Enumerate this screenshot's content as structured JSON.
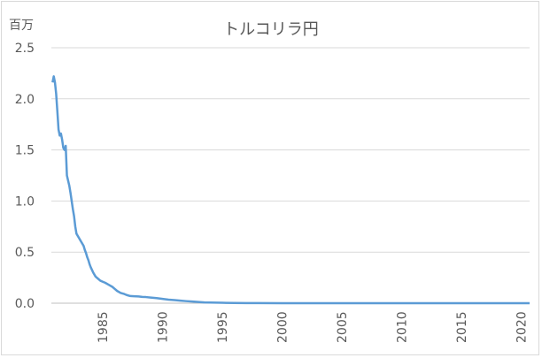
{
  "chart_data": {
    "type": "line",
    "title": "トルコリラ円",
    "unit_label": "百万",
    "xlabel": "",
    "ylabel": "",
    "ylim": [
      0,
      2.5
    ],
    "xlim": [
      1980.7,
      2020.7
    ],
    "y_ticks": [
      "0.0",
      "0.5",
      "1.0",
      "1.5",
      "2.0",
      "2.5"
    ],
    "x_ticks": [
      "1985",
      "1990",
      "1995",
      "2000",
      "2005",
      "2010",
      "2015",
      "2020"
    ],
    "grid": true,
    "legend": "none",
    "line_color": "#5b9bd5",
    "series": [
      {
        "x": [
          1980.8,
          1980.9,
          1981.0,
          1981.1,
          1981.2,
          1981.3,
          1981.4,
          1981.5,
          1981.6,
          1981.7,
          1981.8,
          1981.9,
          1982.0,
          1982.1,
          1982.2,
          1982.3,
          1982.4,
          1982.5,
          1982.6,
          1982.7,
          1982.8,
          1983.0,
          1983.2,
          1983.4,
          1983.5,
          1983.6,
          1983.7,
          1983.8,
          1983.9,
          1984.0,
          1984.2,
          1984.4,
          1984.6,
          1984.8,
          1985.0,
          1985.2,
          1985.5,
          1985.8,
          1986.0,
          1986.2,
          1986.5,
          1986.8,
          1987.0,
          1987.3,
          1987.6,
          1988.0,
          1988.3,
          1988.6,
          1989.0,
          1989.5,
          1990.0,
          1990.5,
          1991.0,
          1991.5,
          1992.0,
          1992.5,
          1993.0,
          1993.5,
          1994.0,
          1995.0,
          1996.0,
          1997.0,
          1998.0,
          2000.0,
          2005.0,
          2010.0,
          2015.0,
          2020.7
        ],
        "y": [
          2.16,
          2.22,
          2.16,
          2.05,
          1.88,
          1.7,
          1.64,
          1.66,
          1.6,
          1.52,
          1.5,
          1.54,
          1.25,
          1.2,
          1.15,
          1.08,
          1.0,
          0.92,
          0.85,
          0.75,
          0.68,
          0.64,
          0.6,
          0.56,
          0.52,
          0.49,
          0.45,
          0.42,
          0.38,
          0.35,
          0.3,
          0.26,
          0.24,
          0.22,
          0.21,
          0.2,
          0.18,
          0.16,
          0.14,
          0.12,
          0.1,
          0.09,
          0.08,
          0.07,
          0.068,
          0.066,
          0.062,
          0.06,
          0.055,
          0.05,
          0.042,
          0.035,
          0.03,
          0.025,
          0.02,
          0.016,
          0.012,
          0.008,
          0.006,
          0.004,
          0.002,
          0.0015,
          0.001,
          0.0005,
          0.0002,
          0.0001,
          0.0001,
          0.0001
        ]
      }
    ]
  }
}
